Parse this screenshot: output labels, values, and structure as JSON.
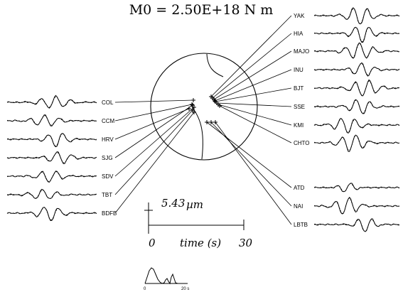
{
  "title": "M0 = 2.50E+18 N m",
  "stations_left": [
    "COL",
    "CCM",
    "HRV",
    "SJG",
    "SDV",
    "TBT",
    "BDFB"
  ],
  "stations_right_upper": [
    "YAK",
    "HIA",
    "MAJO",
    "INU",
    "BJT",
    "SSE",
    "KMI",
    "CHTO"
  ],
  "stations_right_lower": [
    "ATD",
    "NAI",
    "LBTB"
  ],
  "amplitude_scale": {
    "value": "5.43",
    "unit": "µm"
  },
  "time_axis": {
    "start": "0",
    "label": "time (s)",
    "end": "30"
  },
  "source_time_function": {
    "start": "0",
    "end": "20 s"
  }
}
